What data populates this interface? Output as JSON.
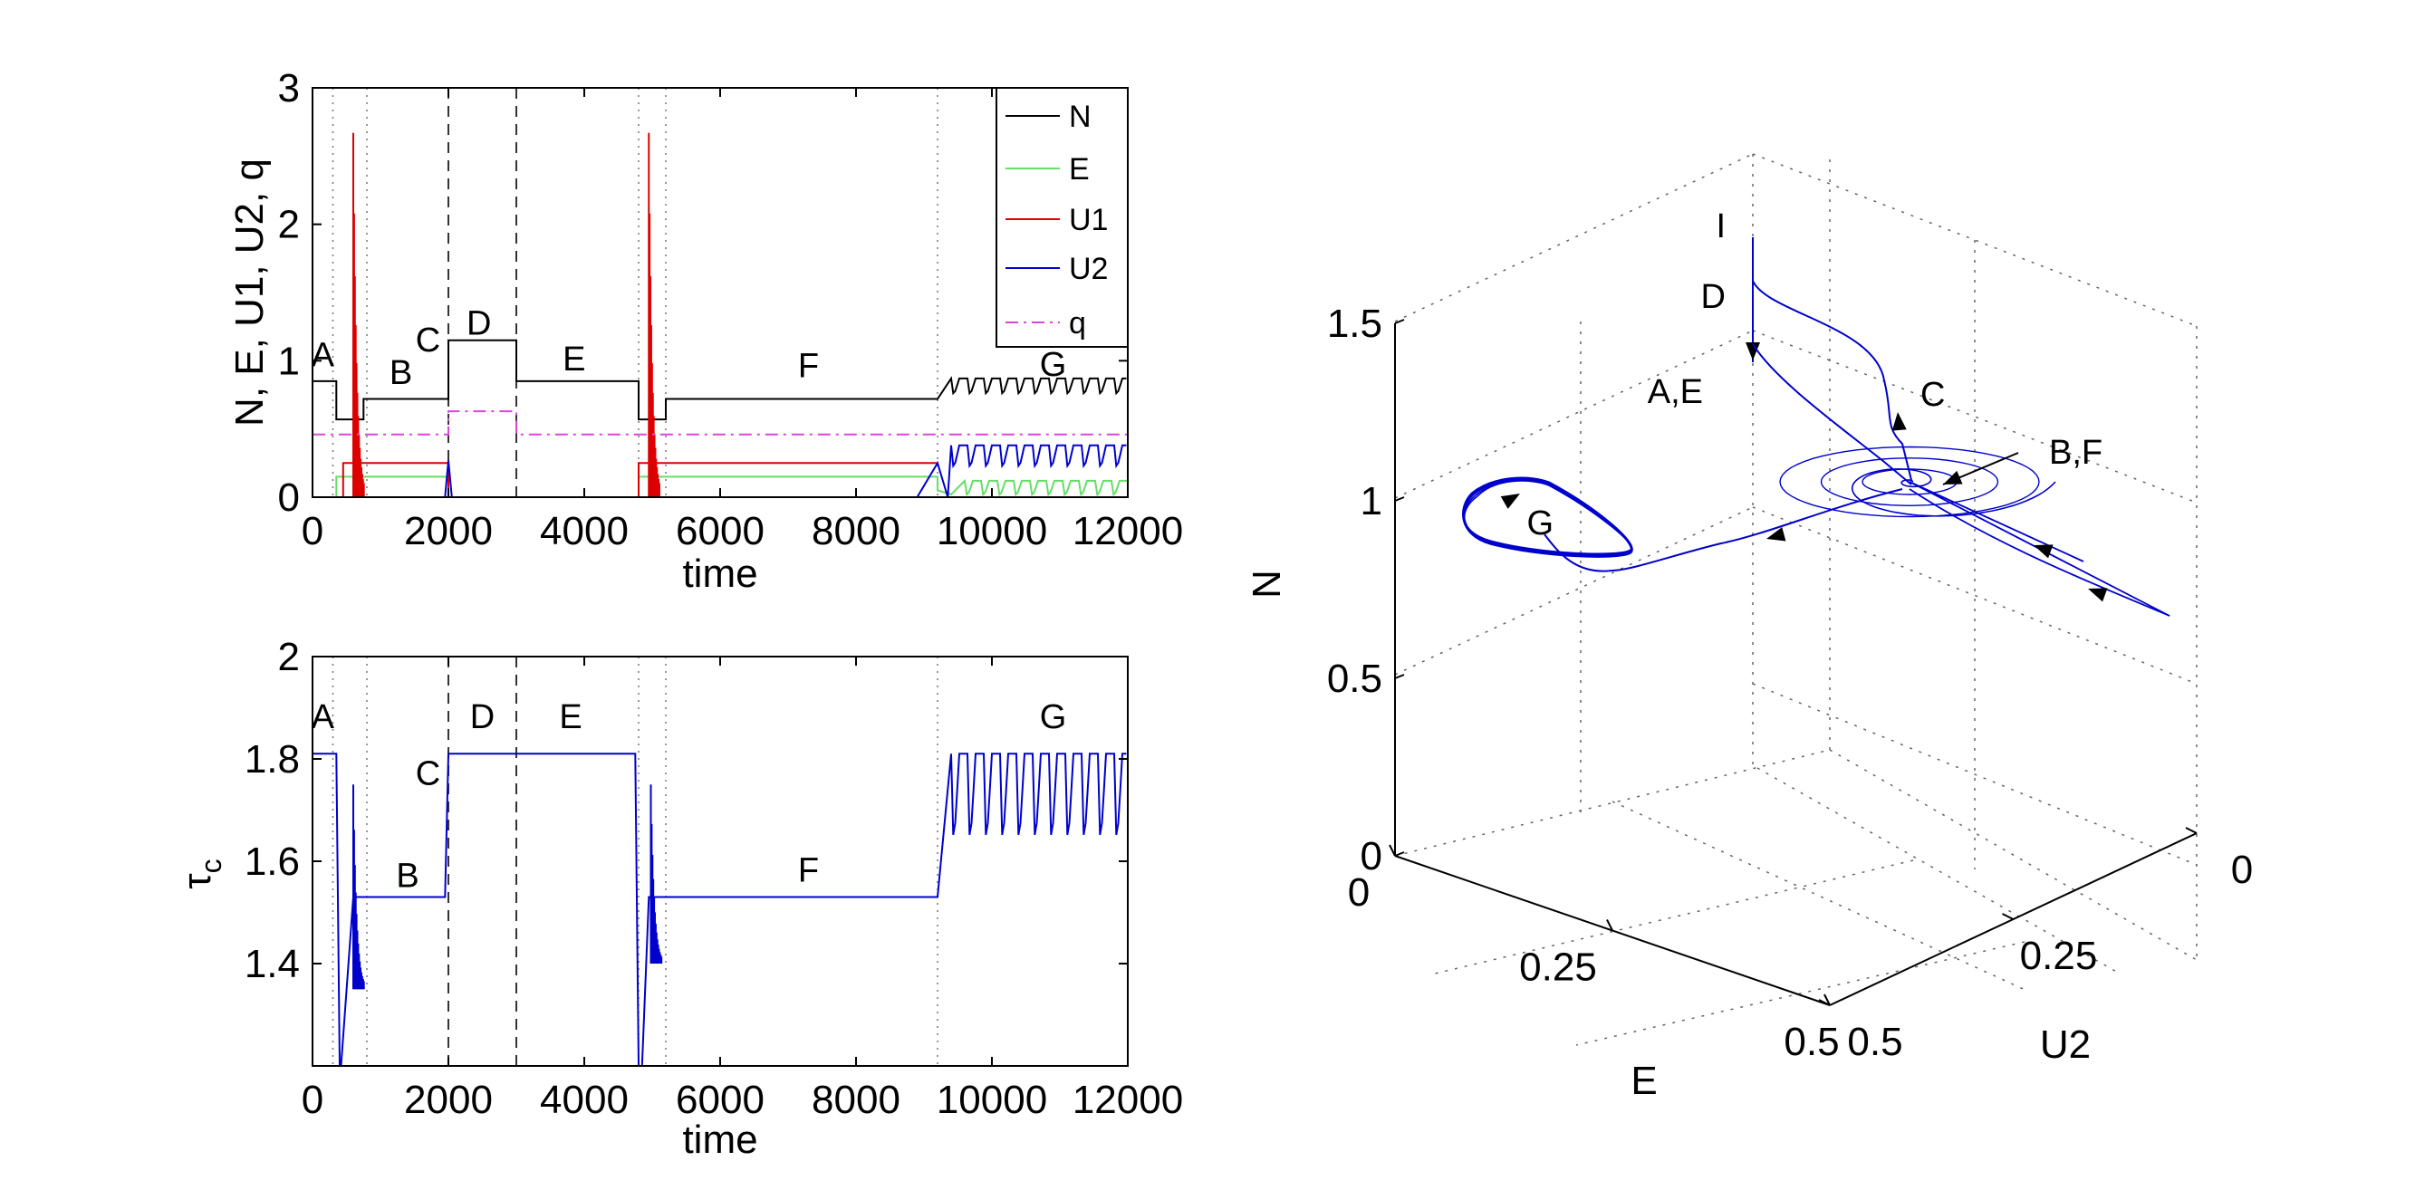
{
  "chart_data": [
    {
      "id": "top",
      "type": "line",
      "xlabel": "time",
      "ylabel": "N, E, U1, U2, q",
      "xlim": [
        0,
        12000
      ],
      "ylim": [
        0,
        3
      ],
      "xticks": [
        0,
        2000,
        4000,
        6000,
        8000,
        10000,
        12000
      ],
      "yticks": [
        0,
        1,
        2,
        3
      ],
      "dashed_vlines": [
        2000,
        3000
      ],
      "dotted_vlines": [
        300,
        800,
        4800,
        5200,
        9200
      ],
      "legend": {
        "location": "top-right",
        "entries": [
          {
            "label": "N",
            "color": "#000000",
            "style": "solid"
          },
          {
            "label": "E",
            "color": "#66dd66",
            "style": "solid"
          },
          {
            "label": "U1",
            "color": "#dd0000",
            "style": "solid"
          },
          {
            "label": "U2",
            "color": "#0000cc",
            "style": "solid"
          },
          {
            "label": "q",
            "color": "#dd44dd",
            "style": "dashdot"
          }
        ]
      },
      "annotations": [
        {
          "text": "A",
          "x": 150,
          "y": 0.96
        },
        {
          "text": "B",
          "x": 1300,
          "y": 0.83
        },
        {
          "text": "C",
          "x": 1700,
          "y": 1.07
        },
        {
          "text": "D",
          "x": 2450,
          "y": 1.19
        },
        {
          "text": "E",
          "x": 3850,
          "y": 0.93
        },
        {
          "text": "F",
          "x": 7300,
          "y": 0.88
        },
        {
          "text": "G",
          "x": 10900,
          "y": 0.89
        }
      ],
      "series": [
        {
          "name": "N",
          "color": "#000000",
          "style": "solid",
          "x": [
            0,
            350,
            350,
            750,
            750,
            2000,
            2000,
            3000,
            3000,
            4800,
            4800,
            5200,
            5200,
            9200
          ],
          "y": [
            0.85,
            0.85,
            0.57,
            0.57,
            0.72,
            0.72,
            1.15,
            1.15,
            0.85,
            0.85,
            0.57,
            0.57,
            0.72,
            0.72
          ],
          "oscillation": {
            "from": 9400,
            "to": 12000,
            "period": 240,
            "low": 0.74,
            "high": 0.87
          }
        },
        {
          "name": "E",
          "color": "#66dd66",
          "style": "solid",
          "x": [
            0,
            350,
            350,
            2000,
            2000,
            4800,
            4800,
            9200,
            9200,
            9400
          ],
          "y": [
            0,
            0,
            0.15,
            0.15,
            0,
            0,
            0.15,
            0.15,
            0.05,
            0.02
          ],
          "oscillation": {
            "from": 9600,
            "to": 12000,
            "period": 240,
            "low": 0.0,
            "high": 0.12
          }
        },
        {
          "name": "U1",
          "color": "#dd0000",
          "style": "solid",
          "x": [
            0,
            450,
            450,
            2000,
            2000,
            4800,
            4800,
            9200
          ],
          "y": [
            0,
            0,
            0.25,
            0.25,
            0,
            0,
            0.25,
            0.25
          ],
          "spikes": [
            {
              "x": 600,
              "max": 2.67
            },
            {
              "x": 4950,
              "max": 2.67
            }
          ]
        },
        {
          "name": "U2",
          "color": "#0000cc",
          "style": "solid",
          "x": [
            0,
            1950,
            2000,
            2050,
            8900,
            9200,
            9350
          ],
          "y": [
            0,
            0,
            0.27,
            0,
            0,
            0.25,
            0.0
          ],
          "oscillation": {
            "from": 9400,
            "to": 12000,
            "period": 240,
            "low": 0.2,
            "high": 0.38
          }
        },
        {
          "name": "q",
          "color": "#dd44dd",
          "style": "dashdot",
          "x": [
            0,
            2000,
            2000,
            3000,
            3000,
            12000
          ],
          "y": [
            0.46,
            0.46,
            0.63,
            0.63,
            0.46,
            0.46
          ]
        }
      ]
    },
    {
      "id": "bottom",
      "type": "line",
      "xlabel": "time",
      "ylabel": "τ",
      "ylabel_sub": "c",
      "xlim": [
        0,
        12000
      ],
      "ylim": [
        1.2,
        2.0
      ],
      "xticks": [
        0,
        2000,
        4000,
        6000,
        8000,
        10000,
        12000
      ],
      "yticks": [
        1.4,
        1.6,
        1.8,
        2
      ],
      "dashed_vlines": [
        2000,
        3000
      ],
      "dotted_vlines": [
        300,
        800,
        4800,
        5200,
        9200
      ],
      "annotations": [
        {
          "text": "A",
          "x": 150,
          "y": 1.86
        },
        {
          "text": "B",
          "x": 1400,
          "y": 1.55
        },
        {
          "text": "C",
          "x": 1700,
          "y": 1.75
        },
        {
          "text": "D",
          "x": 2500,
          "y": 1.86
        },
        {
          "text": "E",
          "x": 3800,
          "y": 1.86
        },
        {
          "text": "F",
          "x": 7300,
          "y": 1.56
        },
        {
          "text": "G",
          "x": 10900,
          "y": 1.86
        }
      ],
      "series": [
        {
          "name": "tau_c",
          "color": "#0000cc",
          "style": "solid",
          "x": [
            0,
            350,
            400,
            420,
            600,
            640,
            1950,
            2000,
            2050,
            4750,
            4800,
            4850,
            4950,
            5000,
            9200,
            9400
          ],
          "y": [
            1.81,
            1.81,
            1.2,
            1.2,
            1.53,
            1.53,
            1.53,
            1.81,
            1.81,
            1.81,
            1.2,
            1.2,
            1.53,
            1.53,
            1.53,
            1.81
          ],
          "spikes": [
            {
              "x": 600,
              "min": 1.35,
              "max": 1.75
            },
            {
              "x": 4980,
              "min": 1.4,
              "max": 1.75
            }
          ],
          "oscillation": {
            "from": 9400,
            "to": 12000,
            "period": 240,
            "low": 1.62,
            "high": 1.81
          }
        }
      ]
    },
    {
      "id": "phase3d",
      "type": "line3d",
      "xlabel": "E",
      "ylabel": "U2",
      "zlabel": "N",
      "E_ticks": [
        0,
        0.25,
        0.5
      ],
      "E_tick_labels": [
        "0",
        "0.25",
        "0.5"
      ],
      "U2_ticks": [
        0,
        0.25,
        0.5
      ],
      "U2_tick_labels": [
        "0",
        "0.25",
        "0.5"
      ],
      "N_ticks": [
        0,
        0.5,
        1,
        1.5
      ],
      "N_tick_labels": [
        "0",
        "0.5",
        "1",
        "1.5"
      ],
      "color": "#0000cc",
      "annotations": [
        {
          "text": "I"
        },
        {
          "text": "D"
        },
        {
          "text": "A,E"
        },
        {
          "text": "C"
        },
        {
          "text": "B,F"
        },
        {
          "text": "G"
        }
      ],
      "fixed_points": [
        {
          "label": "I",
          "E": 0,
          "U2": 0,
          "N": 1.63
        },
        {
          "label": "D",
          "E": 0,
          "U2": 0,
          "N": 1.48
        },
        {
          "label": "A,E",
          "E": 0,
          "U2": 0,
          "N": 1.3
        },
        {
          "label": "B,F",
          "E": 0.15,
          "U2": 0.27,
          "N": 0.72
        },
        {
          "label": "G",
          "E": 0.05,
          "U2": 0.3,
          "N": 0.8
        }
      ]
    }
  ]
}
